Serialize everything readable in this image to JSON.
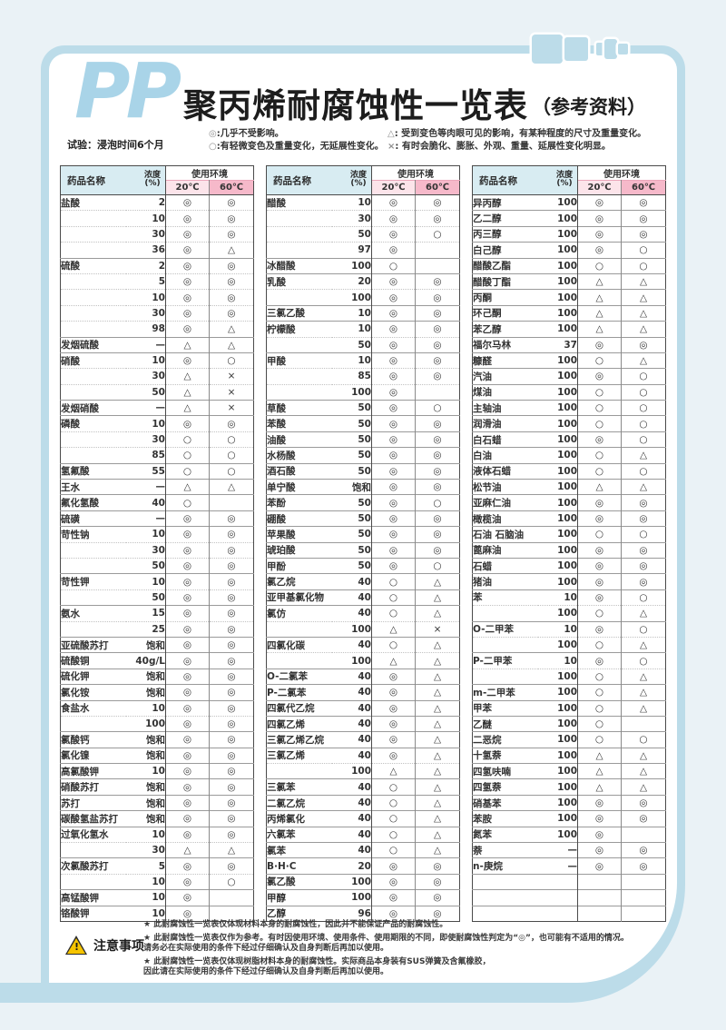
{
  "header": {
    "logo": "PP",
    "title": "聚丙烯耐腐蚀性一览表",
    "title_note": "（参考资料）",
    "test_condition": "试验：浸泡时间6个月",
    "legend": [
      {
        "symbol": "◎",
        "desc": ":几乎不受影响。"
      },
      {
        "symbol": "○",
        "desc": ":有轻微变色及重量变化，无延展性变化。"
      },
      {
        "symbol": "△",
        "desc": ": 受到变色等肉眼可见的影响，有某种程度的尺寸及重量变化。"
      },
      {
        "symbol": "×",
        "desc": ": 有时会脆化、膨胀、外观、重量、延展性变化明显。"
      }
    ]
  },
  "table_header": {
    "name": "药品名称",
    "concentration": "浓度\n(%)",
    "environment": "使用环境",
    "temp20": "20℃",
    "temp60": "60℃"
  },
  "row_format": [
    "chemical_name",
    "concentration",
    "rating_20c",
    "rating_60c",
    "new_group"
  ],
  "tables": [
    {
      "rows": [
        [
          "盐酸",
          "2",
          "◎",
          "◎",
          1
        ],
        [
          "",
          "10",
          "◎",
          "◎",
          0
        ],
        [
          "",
          "30",
          "◎",
          "◎",
          0
        ],
        [
          "",
          "36",
          "◎",
          "△",
          0
        ],
        [
          "硫酸",
          "2",
          "◎",
          "◎",
          1
        ],
        [
          "",
          "5",
          "◎",
          "◎",
          0
        ],
        [
          "",
          "10",
          "◎",
          "◎",
          0
        ],
        [
          "",
          "30",
          "◎",
          "◎",
          0
        ],
        [
          "",
          "98",
          "◎",
          "△",
          0
        ],
        [
          "发烟硫酸",
          "—",
          "△",
          "△",
          1
        ],
        [
          "硝酸",
          "10",
          "◎",
          "○",
          1
        ],
        [
          "",
          "30",
          "△",
          "×",
          0
        ],
        [
          "",
          "50",
          "△",
          "×",
          0
        ],
        [
          "发烟硝酸",
          "—",
          "△",
          "×",
          1
        ],
        [
          "磷酸",
          "10",
          "◎",
          "◎",
          1
        ],
        [
          "",
          "30",
          "○",
          "○",
          0
        ],
        [
          "",
          "85",
          "○",
          "○",
          0
        ],
        [
          "氢氟酸",
          "55",
          "○",
          "○",
          1
        ],
        [
          "王水",
          "—",
          "△",
          "△",
          1
        ],
        [
          "氟化氢酸",
          "40",
          "○",
          "",
          1
        ],
        [
          "硫磺",
          "—",
          "◎",
          "◎",
          1
        ],
        [
          "苛性钠",
          "10",
          "◎",
          "◎",
          1
        ],
        [
          "",
          "30",
          "◎",
          "◎",
          0
        ],
        [
          "",
          "50",
          "◎",
          "◎",
          0
        ],
        [
          "苛性钾",
          "10",
          "◎",
          "◎",
          1
        ],
        [
          "",
          "50",
          "◎",
          "◎",
          0
        ],
        [
          "氨水",
          "15",
          "◎",
          "◎",
          1
        ],
        [
          "",
          "25",
          "◎",
          "◎",
          0
        ],
        [
          "亚硫酸苏打",
          "饱和",
          "◎",
          "◎",
          1
        ],
        [
          "硫酸铜",
          "40g/L",
          "◎",
          "◎",
          1
        ],
        [
          "硫化钾",
          "饱和",
          "◎",
          "◎",
          1
        ],
        [
          "氯化铵",
          "饱和",
          "◎",
          "◎",
          1
        ],
        [
          "食盐水",
          "10",
          "◎",
          "◎",
          1
        ],
        [
          "",
          "100",
          "◎",
          "◎",
          0
        ],
        [
          "氯酸钙",
          "饱和",
          "◎",
          "◎",
          1
        ],
        [
          "氯化镍",
          "饱和",
          "◎",
          "◎",
          1
        ],
        [
          "高氯酸钾",
          "10",
          "◎",
          "◎",
          1
        ],
        [
          "硝酸苏打",
          "饱和",
          "◎",
          "◎",
          1
        ],
        [
          "苏打",
          "饱和",
          "◎",
          "◎",
          1
        ],
        [
          "碳酸氢盐苏打",
          "饱和",
          "◎",
          "◎",
          1
        ],
        [
          "过氧化氢水",
          "10",
          "◎",
          "◎",
          1
        ],
        [
          "",
          "30",
          "△",
          "△",
          0
        ],
        [
          "次氯酸苏打",
          "5",
          "◎",
          "◎",
          1
        ],
        [
          "",
          "10",
          "◎",
          "○",
          0
        ],
        [
          "高锰酸钾",
          "10",
          "◎",
          "",
          1
        ],
        [
          "铬酸钾",
          "10",
          "◎",
          "",
          1
        ]
      ]
    },
    {
      "rows": [
        [
          "醋酸",
          "10",
          "◎",
          "◎",
          1
        ],
        [
          "",
          "30",
          "◎",
          "◎",
          0
        ],
        [
          "",
          "50",
          "◎",
          "○",
          0
        ],
        [
          "",
          "97",
          "◎",
          "",
          0
        ],
        [
          "冰醋酸",
          "100",
          "○",
          "",
          1
        ],
        [
          "乳酸",
          "20",
          "◎",
          "◎",
          1
        ],
        [
          "",
          "100",
          "◎",
          "◎",
          0
        ],
        [
          "三氯乙酸",
          "10",
          "◎",
          "◎",
          1
        ],
        [
          "柠檬酸",
          "10",
          "◎",
          "◎",
          1
        ],
        [
          "",
          "50",
          "◎",
          "◎",
          0
        ],
        [
          "甲酸",
          "10",
          "◎",
          "◎",
          1
        ],
        [
          "",
          "85",
          "◎",
          "◎",
          0
        ],
        [
          "",
          "100",
          "◎",
          "",
          0
        ],
        [
          "草酸",
          "50",
          "◎",
          "○",
          1
        ],
        [
          "苯酸",
          "50",
          "◎",
          "◎",
          1
        ],
        [
          "油酸",
          "50",
          "◎",
          "◎",
          1
        ],
        [
          "水杨酸",
          "50",
          "◎",
          "◎",
          1
        ],
        [
          "酒石酸",
          "50",
          "◎",
          "◎",
          1
        ],
        [
          "单宁酸",
          "饱和",
          "◎",
          "◎",
          1
        ],
        [
          "苯酚",
          "50",
          "◎",
          "○",
          1
        ],
        [
          "硼酸",
          "50",
          "◎",
          "◎",
          1
        ],
        [
          "苹果酸",
          "50",
          "◎",
          "◎",
          1
        ],
        [
          "琥珀酸",
          "50",
          "◎",
          "◎",
          1
        ],
        [
          "甲酚",
          "50",
          "◎",
          "○",
          1
        ],
        [
          "氯乙烷",
          "40",
          "○",
          "△",
          1
        ],
        [
          "亚甲基氯化物",
          "40",
          "○",
          "△",
          1
        ],
        [
          "氯仿",
          "40",
          "○",
          "△",
          1
        ],
        [
          "",
          "100",
          "△",
          "×",
          0
        ],
        [
          "四氯化碳",
          "40",
          "○",
          "△",
          1
        ],
        [
          "",
          "100",
          "△",
          "△",
          0
        ],
        [
          "O-二氯苯",
          "40",
          "◎",
          "△",
          1
        ],
        [
          "P-二氯苯",
          "40",
          "◎",
          "△",
          1
        ],
        [
          "四氯代乙烷",
          "40",
          "◎",
          "△",
          1
        ],
        [
          "四氯乙烯",
          "40",
          "◎",
          "△",
          1
        ],
        [
          "三氯乙烯乙烷",
          "40",
          "◎",
          "△",
          1
        ],
        [
          "三氯乙烯",
          "40",
          "◎",
          "△",
          1
        ],
        [
          "",
          "100",
          "△",
          "△",
          0
        ],
        [
          "三氯苯",
          "40",
          "○",
          "△",
          1
        ],
        [
          "二氯乙烷",
          "40",
          "○",
          "△",
          1
        ],
        [
          "丙烯氯化",
          "40",
          "○",
          "△",
          1
        ],
        [
          "六氯苯",
          "40",
          "○",
          "△",
          1
        ],
        [
          "氯苯",
          "40",
          "○",
          "△",
          1
        ],
        [
          "B·H·C",
          "20",
          "◎",
          "◎",
          1
        ],
        [
          "氯乙酸",
          "100",
          "◎",
          "◎",
          1
        ],
        [
          "甲醇",
          "100",
          "◎",
          "◎",
          1
        ],
        [
          "乙醇",
          "96",
          "◎",
          "◎",
          1
        ]
      ]
    },
    {
      "rows": [
        [
          "异丙醇",
          "100",
          "◎",
          "◎",
          1
        ],
        [
          "乙二醇",
          "100",
          "◎",
          "◎",
          1
        ],
        [
          "丙三醇",
          "100",
          "◎",
          "◎",
          1
        ],
        [
          "白己醇",
          "100",
          "◎",
          "○",
          1
        ],
        [
          "醋酸乙酯",
          "100",
          "○",
          "○",
          1
        ],
        [
          "醋酸丁酯",
          "100",
          "△",
          "△",
          1
        ],
        [
          "丙酮",
          "100",
          "△",
          "△",
          1
        ],
        [
          "环己酮",
          "100",
          "△",
          "△",
          1
        ],
        [
          "苯乙醇",
          "100",
          "△",
          "△",
          1
        ],
        [
          "福尔马林",
          "37",
          "◎",
          "◎",
          1
        ],
        [
          "糠醛",
          "100",
          "○",
          "△",
          1
        ],
        [
          "汽油",
          "100",
          "◎",
          "○",
          1
        ],
        [
          "煤油",
          "100",
          "○",
          "○",
          1
        ],
        [
          "主轴油",
          "100",
          "○",
          "○",
          1
        ],
        [
          "润滑油",
          "100",
          "○",
          "○",
          1
        ],
        [
          "白石蜡",
          "100",
          "◎",
          "○",
          1
        ],
        [
          "白油",
          "100",
          "○",
          "△",
          1
        ],
        [
          "液体石蜡",
          "100",
          "○",
          "○",
          1
        ],
        [
          "松节油",
          "100",
          "△",
          "△",
          1
        ],
        [
          "亚麻仁油",
          "100",
          "◎",
          "◎",
          1
        ],
        [
          "橄榄油",
          "100",
          "◎",
          "◎",
          1
        ],
        [
          "石油 石脑油",
          "100",
          "○",
          "○",
          1
        ],
        [
          "蓖麻油",
          "100",
          "◎",
          "◎",
          1
        ],
        [
          "石蜡",
          "100",
          "◎",
          "◎",
          1
        ],
        [
          "猪油",
          "100",
          "◎",
          "◎",
          1
        ],
        [
          "苯",
          "10",
          "◎",
          "○",
          1
        ],
        [
          "",
          "100",
          "○",
          "△",
          0
        ],
        [
          "O-二甲苯",
          "10",
          "◎",
          "○",
          1
        ],
        [
          "",
          "100",
          "○",
          "△",
          0
        ],
        [
          "P-二甲苯",
          "10",
          "◎",
          "○",
          1
        ],
        [
          "",
          "100",
          "○",
          "△",
          0
        ],
        [
          "m-二甲苯",
          "100",
          "○",
          "△",
          1
        ],
        [
          "甲苯",
          "100",
          "○",
          "△",
          1
        ],
        [
          "乙醚",
          "100",
          "○",
          "",
          1
        ],
        [
          "二恶烷",
          "100",
          "○",
          "○",
          1
        ],
        [
          "十氢萘",
          "100",
          "△",
          "△",
          1
        ],
        [
          "四氢呋喃",
          "100",
          "△",
          "△",
          1
        ],
        [
          "四氢萘",
          "100",
          "△",
          "△",
          1
        ],
        [
          "硝基苯",
          "100",
          "◎",
          "◎",
          1
        ],
        [
          "苯胺",
          "100",
          "◎",
          "◎",
          1
        ],
        [
          "氮苯",
          "100",
          "◎",
          "",
          1
        ],
        [
          "萘",
          "—",
          "◎",
          "◎",
          1
        ],
        [
          "n-庚烷",
          "—",
          "◎",
          "◎",
          1
        ],
        [
          "",
          "",
          "",
          "",
          1
        ],
        [
          "",
          "",
          "",
          "",
          1
        ],
        [
          "",
          "",
          "",
          "",
          1
        ]
      ]
    }
  ],
  "footer": {
    "warning_label": "注意事项",
    "warning_bang": "!",
    "notes": [
      "★ 此耐腐蚀性一览表仅体现材料本身的耐腐蚀性，因此并不能保证产品的耐腐蚀性。",
      "★ 此耐腐蚀性一览表仅作为参考。有时因使用环境、使用条件、使用期限的不同，即使耐腐蚀性判定为“◎”，也可能有不适用的情况。\n请务必在实际使用的条件下经过仔细确认及自身判断后再加以使用。",
      "★ 此耐腐蚀性一览表仅体现树脂材料本身的耐腐蚀性。实际商品本身装有SUS弹簧及含氟橡胶，\n因此请在实际使用的条件下经过仔细确认及自身判断后再加以使用。"
    ]
  },
  "colors": {
    "accent_blue": "#a9d4e8",
    "frame_blue": "#bcdce9",
    "header_blue": "#d8ecf2",
    "pink_20c": "#fce4ea",
    "pink_60c": "#f6b9ca",
    "symbol_gray": "#8f8f8f",
    "page_bg": "#eaf2f6"
  }
}
